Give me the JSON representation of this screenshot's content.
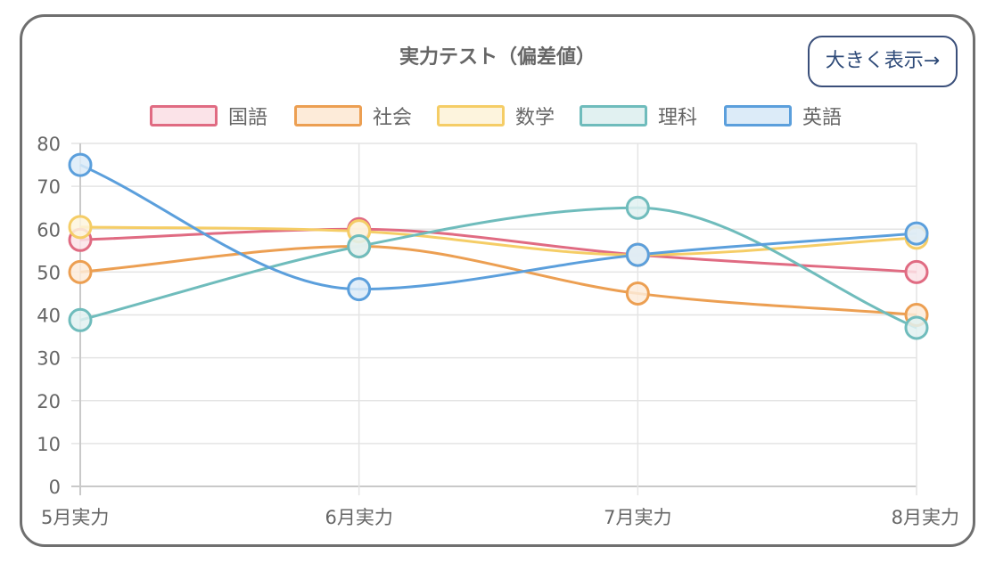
{
  "button": {
    "label": "大きく表示→"
  },
  "chart_data": {
    "type": "line",
    "title": "実力テスト（偏差値）",
    "categories": [
      "5月実力",
      "6月実力",
      "7月実力",
      "8月実力"
    ],
    "ylim": [
      0,
      80
    ],
    "yticks": [
      0,
      10,
      20,
      30,
      40,
      50,
      60,
      70,
      80
    ],
    "grid": true,
    "legend_position": "top",
    "series": [
      {
        "name": "国語",
        "color": "#e06b82",
        "fill": "#fbe3e8",
        "values": [
          57.5,
          60,
          54,
          50
        ]
      },
      {
        "name": "社会",
        "color": "#ec9f52",
        "fill": "#fdebd9",
        "values": [
          50,
          56,
          45,
          40
        ]
      },
      {
        "name": "数学",
        "color": "#f5cd66",
        "fill": "#fdf4dd",
        "values": [
          60.5,
          59.5,
          54,
          58
        ]
      },
      {
        "name": "理科",
        "color": "#6fbcbc",
        "fill": "#e1f1f1",
        "values": [
          38.8,
          56,
          65,
          37
        ]
      },
      {
        "name": "英語",
        "color": "#5b9fdc",
        "fill": "#dcebf8",
        "values": [
          75,
          46,
          54,
          59
        ]
      }
    ]
  }
}
